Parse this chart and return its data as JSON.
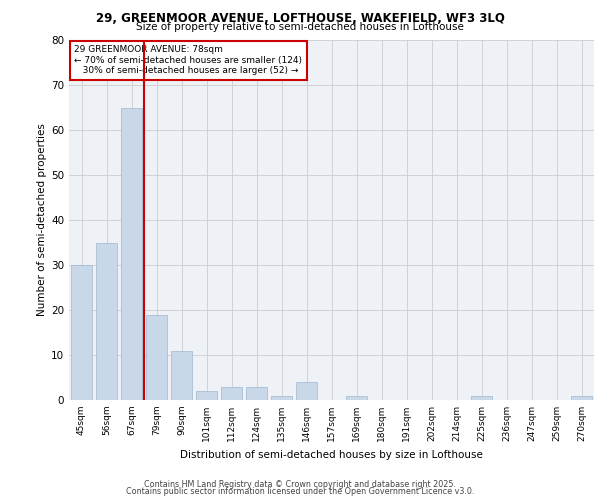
{
  "title1": "29, GREENMOOR AVENUE, LOFTHOUSE, WAKEFIELD, WF3 3LQ",
  "title2": "Size of property relative to semi-detached houses in Lofthouse",
  "xlabel": "Distribution of semi-detached houses by size in Lofthouse",
  "ylabel": "Number of semi-detached properties",
  "categories": [
    "45sqm",
    "56sqm",
    "67sqm",
    "79sqm",
    "90sqm",
    "101sqm",
    "112sqm",
    "124sqm",
    "135sqm",
    "146sqm",
    "157sqm",
    "169sqm",
    "180sqm",
    "191sqm",
    "202sqm",
    "214sqm",
    "225sqm",
    "236sqm",
    "247sqm",
    "259sqm",
    "270sqm"
  ],
  "values": [
    30,
    35,
    65,
    19,
    11,
    2,
    3,
    3,
    1,
    4,
    0,
    1,
    0,
    0,
    0,
    0,
    1,
    0,
    0,
    0,
    1
  ],
  "bar_color": "#c8d8e8",
  "bar_edge_color": "#a0b8cc",
  "property_label": "29 GREENMOOR AVENUE: 78sqm",
  "pct_smaller": 70,
  "n_smaller": 124,
  "pct_larger": 30,
  "n_larger": 52,
  "vline_color": "#cc0000",
  "ylim": [
    0,
    80
  ],
  "yticks": [
    0,
    10,
    20,
    30,
    40,
    50,
    60,
    70,
    80
  ],
  "grid_color": "#cccccc",
  "bg_color": "#eef2f7",
  "footer1": "Contains HM Land Registry data © Crown copyright and database right 2025.",
  "footer2": "Contains public sector information licensed under the Open Government Licence v3.0."
}
